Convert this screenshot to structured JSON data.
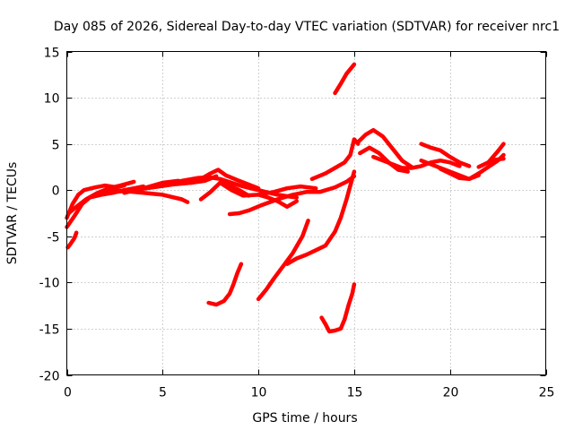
{
  "chart_data": {
    "type": "line",
    "title": "Day 085 of 2026, Sidereal Day-to-day VTEC variation (SDTVAR) for receiver nrc1",
    "xlabel": "GPS time / hours",
    "ylabel": "SDTVAR / TECUs",
    "xlim": [
      0,
      25
    ],
    "ylim": [
      -20,
      15
    ],
    "xticks": [
      0,
      5,
      10,
      15,
      20,
      25
    ],
    "yticks": [
      -20,
      -15,
      -10,
      -5,
      0,
      5,
      10,
      15
    ],
    "xtick_labels": [
      "0",
      "5",
      "10",
      "15",
      "20",
      "25"
    ],
    "ytick_labels": [
      "-20",
      "-15",
      "-10",
      "-5",
      "0",
      "5",
      "10",
      "15"
    ],
    "grid": true,
    "color": "#ff0000",
    "series": [
      {
        "name": "s1",
        "x": [
          0,
          0.3,
          0.6,
          0.9,
          1.5,
          2.0,
          2.6,
          3.0
        ],
        "y": [
          -3.0,
          -1.5,
          -0.5,
          0.0,
          0.3,
          0.5,
          0.3,
          0.5
        ]
      },
      {
        "name": "s2",
        "x": [
          0,
          0.4,
          0.8,
          1.2,
          1.8,
          2.4,
          3.0,
          3.5,
          4.0
        ],
        "y": [
          -4.0,
          -2.8,
          -1.5,
          -0.8,
          -0.5,
          -0.3,
          0.0,
          0.2,
          0.4
        ]
      },
      {
        "name": "s3",
        "x": [
          0.05,
          0.2,
          0.4,
          0.5
        ],
        "y": [
          -6.2,
          -5.8,
          -5.2,
          -4.6
        ]
      },
      {
        "name": "s4",
        "x": [
          0.1,
          0.5,
          1.0,
          1.6,
          2.2,
          2.8,
          3.5
        ],
        "y": [
          -2.5,
          -1.8,
          -1.0,
          -0.3,
          0.2,
          0.5,
          0.9
        ]
      },
      {
        "name": "s5",
        "x": [
          1.5,
          2.5,
          3.5,
          4.5,
          5.5,
          6.5,
          7.0,
          7.5,
          7.9,
          8.3,
          9.0,
          10.0
        ],
        "y": [
          -0.5,
          -0.2,
          0.0,
          0.3,
          0.6,
          0.8,
          1.2,
          1.8,
          2.2,
          1.6,
          1.0,
          0.2
        ]
      },
      {
        "name": "s6",
        "x": [
          2.0,
          3.0,
          4.0,
          5.0,
          6.0,
          6.3
        ],
        "y": [
          0.0,
          -0.1,
          -0.3,
          -0.5,
          -1.0,
          -1.3
        ]
      },
      {
        "name": "s7",
        "x": [
          3.0,
          4.0,
          5.0,
          5.8,
          6.5,
          7.2,
          7.8
        ],
        "y": [
          -0.3,
          0.2,
          0.8,
          1.0,
          0.8,
          1.0,
          1.5
        ]
      },
      {
        "name": "s8",
        "x": [
          5.0,
          6.0,
          6.8,
          7.4,
          8.0,
          8.6,
          9.2,
          9.8,
          10.4,
          11.0,
          11.6,
          12.0
        ],
        "y": [
          0.5,
          1.0,
          1.3,
          1.4,
          1.2,
          0.8,
          0.4,
          0.1,
          -0.2,
          -0.5,
          -0.7,
          -0.8
        ]
      },
      {
        "name": "s9",
        "x": [
          7.0,
          7.5,
          8.0,
          8.5,
          9.0,
          9.5
        ],
        "y": [
          -1.0,
          -0.2,
          0.8,
          0.5,
          0.0,
          -0.6
        ]
      },
      {
        "name": "s10",
        "x": [
          8.0,
          8.6,
          9.2,
          10.0,
          10.8,
          11.5,
          12.2,
          13.0
        ],
        "y": [
          0.8,
          0.0,
          -0.6,
          -0.5,
          -0.2,
          0.2,
          0.4,
          0.2
        ]
      },
      {
        "name": "s11",
        "x": [
          8.5,
          9.0,
          9.5,
          10.2,
          11.0,
          11.8,
          12.5,
          13.2,
          14.0,
          14.6,
          15.0
        ],
        "y": [
          -2.6,
          -2.5,
          -2.2,
          -1.6,
          -1.0,
          -0.5,
          -0.2,
          -0.2,
          0.3,
          0.9,
          1.5
        ]
      },
      {
        "name": "s12",
        "x": [
          10.0,
          10.5,
          11.0,
          11.5,
          12.0
        ],
        "y": [
          -0.5,
          -0.8,
          -1.2,
          -1.8,
          -1.2
        ]
      },
      {
        "name": "s13",
        "x": [
          7.4,
          7.8,
          8.2,
          8.5,
          8.7,
          8.9,
          9.1
        ],
        "y": [
          -12.2,
          -12.4,
          -12.0,
          -11.2,
          -10.2,
          -9.0,
          -8.0
        ]
      },
      {
        "name": "s14",
        "x": [
          10.0,
          10.4,
          10.8,
          11.3,
          11.8,
          12.3,
          12.6
        ],
        "y": [
          -11.8,
          -10.8,
          -9.6,
          -8.2,
          -6.8,
          -5.0,
          -3.3
        ]
      },
      {
        "name": "s15",
        "x": [
          11.5,
          12.0,
          12.5,
          13.0,
          13.5,
          14.0,
          14.3,
          14.6,
          14.8,
          15.0
        ],
        "y": [
          -8.0,
          -7.4,
          -7.0,
          -6.5,
          -6.0,
          -4.5,
          -3.0,
          -1.0,
          0.5,
          2.0
        ]
      },
      {
        "name": "s16",
        "x": [
          13.3,
          13.5,
          13.7,
          14.0,
          14.3,
          14.5,
          14.7,
          14.9,
          15.0
        ],
        "y": [
          -13.8,
          -14.5,
          -15.3,
          -15.2,
          -15.0,
          -14.0,
          -12.5,
          -11.2,
          -10.2
        ]
      },
      {
        "name": "s17",
        "x": [
          14.0,
          14.3,
          14.6,
          15.0
        ],
        "y": [
          10.5,
          11.5,
          12.6,
          13.6
        ]
      },
      {
        "name": "s18",
        "x": [
          12.8,
          13.5,
          14.0,
          14.5,
          14.8,
          15.0,
          15.2
        ],
        "y": [
          1.2,
          1.8,
          2.4,
          3.0,
          3.8,
          5.5,
          5.0
        ]
      },
      {
        "name": "s19",
        "x": [
          15.2,
          15.6,
          16.0,
          16.5,
          17.0,
          17.5,
          18.0
        ],
        "y": [
          5.2,
          6.0,
          6.5,
          5.8,
          4.5,
          3.2,
          2.5
        ]
      },
      {
        "name": "s20",
        "x": [
          15.3,
          15.8,
          16.3,
          16.8,
          17.3,
          17.8
        ],
        "y": [
          4.0,
          4.6,
          4.0,
          3.0,
          2.2,
          2.0
        ]
      },
      {
        "name": "s21",
        "x": [
          16.0,
          16.5,
          17.0,
          17.5,
          18.0,
          18.5,
          19.0,
          19.5,
          20.0,
          20.5
        ],
        "y": [
          3.6,
          3.2,
          2.8,
          2.4,
          2.4,
          2.6,
          3.0,
          3.2,
          3.0,
          2.6
        ]
      },
      {
        "name": "s22",
        "x": [
          18.5,
          19.0,
          19.5,
          20.0,
          20.5,
          21.0
        ],
        "y": [
          5.0,
          4.6,
          4.3,
          3.6,
          3.0,
          2.6
        ]
      },
      {
        "name": "s23",
        "x": [
          18.5,
          19.0,
          19.5,
          20.0,
          20.5,
          21.0,
          21.5
        ],
        "y": [
          3.2,
          2.8,
          2.4,
          2.0,
          1.6,
          1.2,
          1.6
        ]
      },
      {
        "name": "s24",
        "x": [
          19.5,
          20.0,
          20.5,
          21.0,
          21.5,
          22.0,
          22.5,
          22.8
        ],
        "y": [
          2.3,
          1.8,
          1.3,
          1.2,
          1.8,
          2.5,
          3.2,
          3.8
        ]
      },
      {
        "name": "s25",
        "x": [
          21.5,
          22.0,
          22.5,
          22.8
        ],
        "y": [
          2.5,
          3.0,
          4.2,
          5.0
        ]
      },
      {
        "name": "s26",
        "x": [
          22.0,
          22.4,
          22.8
        ],
        "y": [
          3.0,
          3.3,
          3.4
        ]
      }
    ]
  }
}
